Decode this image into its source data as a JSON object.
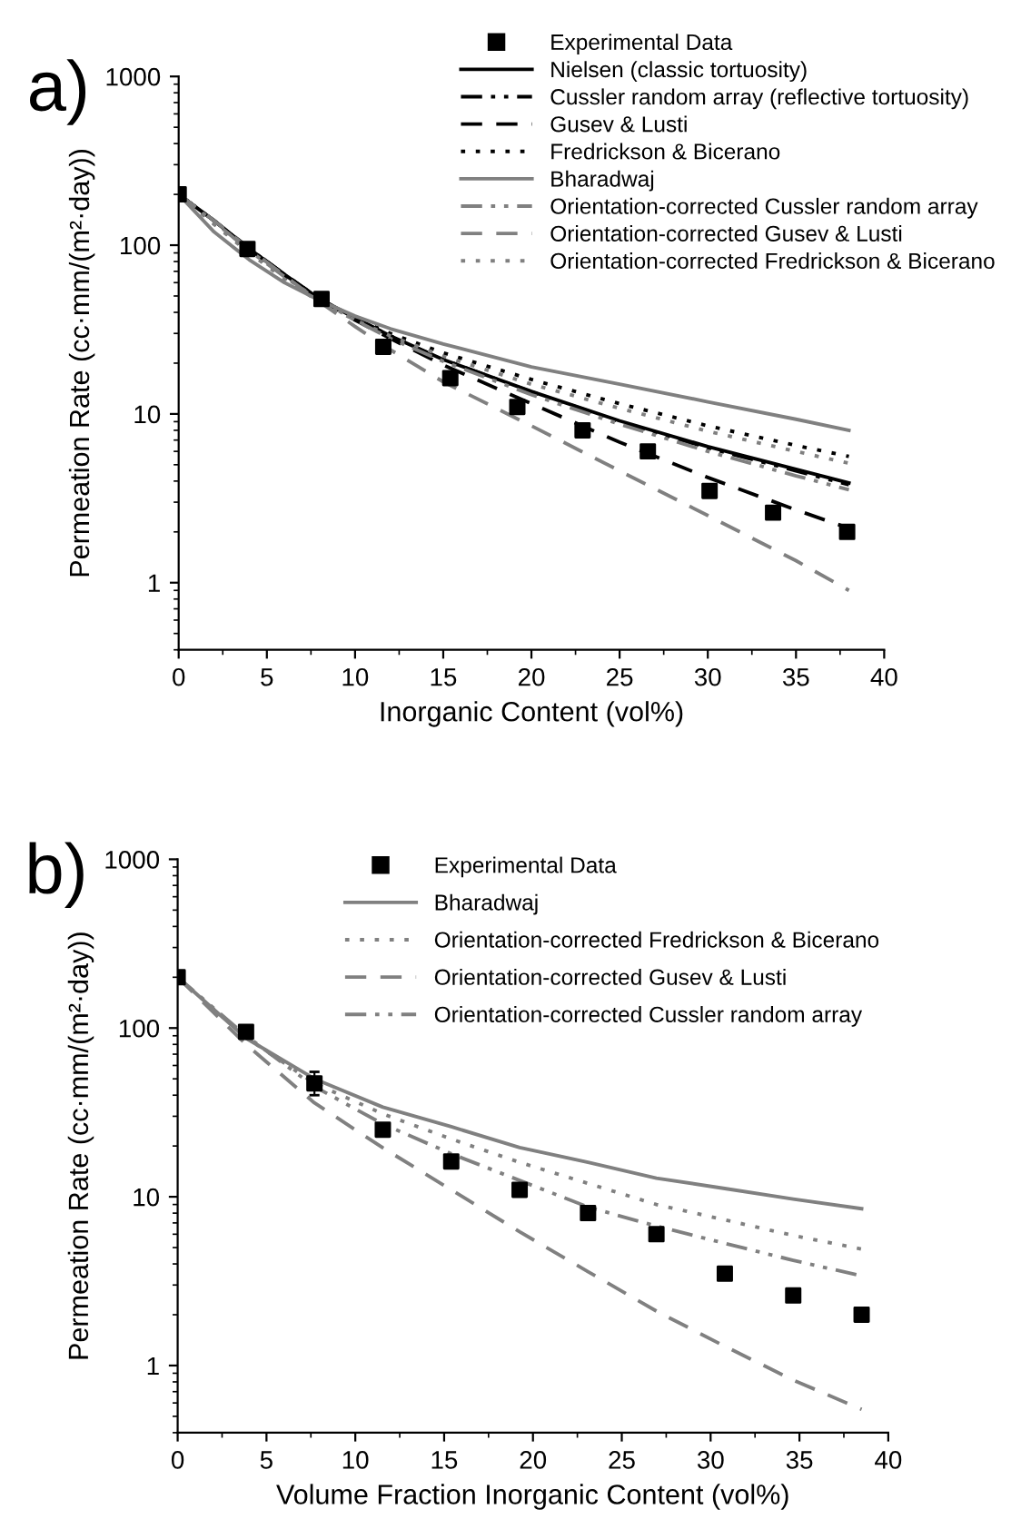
{
  "chart_data": [
    {
      "type": "line",
      "title": "a)",
      "xlabel": "Inorganic Content (vol%)",
      "ylabel": "Permeation Rate (cc·mm/(m²·day))",
      "log": "y",
      "xlim": [
        0,
        40
      ],
      "ylim": [
        0.4,
        1000
      ],
      "xticks": [
        0,
        5,
        10,
        15,
        20,
        25,
        30,
        35,
        40
      ],
      "yticks": [
        1,
        10,
        100,
        1000
      ],
      "legend": "top right",
      "grid": false,
      "series": [
        {
          "name": "Experimental Data",
          "type": "scatter",
          "marker": "square",
          "color": "#000000",
          "x": [
            0,
            3.9,
            8.1,
            11.6,
            15.4,
            19.2,
            22.9,
            26.6,
            30.1,
            33.7,
            37.9
          ],
          "values": [
            200,
            95,
            48,
            25,
            16.3,
            11,
            8,
            6,
            3.5,
            2.6,
            2.0
          ]
        },
        {
          "name": "Nielsen (classic tortuosity)",
          "line_style": "solid",
          "color": "#000000",
          "x": [
            0,
            2,
            4,
            6,
            8,
            10,
            12,
            15,
            20,
            25,
            30,
            35,
            38
          ],
          "values": [
            200,
            140,
            95,
            67,
            48,
            37,
            29,
            21,
            13.6,
            9.1,
            6.4,
            4.7,
            3.9
          ]
        },
        {
          "name": "Cussler random array (reflective tortuosity)",
          "line_style": "dashdotdot",
          "color": "#000000",
          "x": [
            0,
            2,
            4,
            6,
            8,
            10,
            12,
            15,
            20,
            25,
            30,
            35,
            38
          ],
          "values": [
            200,
            140,
            95,
            67,
            48,
            37,
            29,
            21,
            13.5,
            9,
            6.3,
            4.6,
            3.8
          ]
        },
        {
          "name": "Gusev & Lusti",
          "line_style": "dashed",
          "color": "#000000",
          "x": [
            0,
            2,
            4,
            6,
            8,
            10,
            12,
            15,
            20,
            25,
            30,
            35,
            38
          ],
          "values": [
            200,
            140,
            96,
            67,
            48,
            36,
            28,
            19.5,
            11.5,
            6.8,
            4.2,
            2.7,
            2.1
          ]
        },
        {
          "name": "Fredrickson & Bicerano",
          "line_style": "dotted",
          "color": "#000000",
          "x": [
            0,
            2,
            4,
            6,
            8,
            10,
            12,
            15,
            20,
            25,
            30,
            35,
            38
          ],
          "values": [
            200,
            135,
            92,
            65,
            47,
            37,
            30,
            23,
            16,
            11.5,
            8.5,
            6.5,
            5.6
          ]
        },
        {
          "name": "Bharadwaj",
          "line_style": "solid",
          "color": "#808080",
          "x": [
            0,
            2,
            4,
            6,
            8,
            10,
            12,
            15,
            20,
            25,
            30,
            35,
            38
          ],
          "values": [
            200,
            120,
            82,
            60,
            47,
            38,
            32,
            26,
            19,
            15,
            11.8,
            9.3,
            8.0
          ]
        },
        {
          "name": "Orientation-corrected Cussler random array",
          "line_style": "dashdotdot",
          "color": "#808080",
          "x": [
            0,
            2,
            4,
            6,
            8,
            10,
            12,
            15,
            20,
            25,
            30,
            35,
            38
          ],
          "values": [
            200,
            138,
            93,
            65,
            47,
            36,
            28,
            20.5,
            13,
            8.7,
            6,
            4.3,
            3.55
          ]
        },
        {
          "name": "Orientation-corrected Gusev & Lusti",
          "line_style": "dashed",
          "color": "#808080",
          "x": [
            0,
            2,
            4,
            6,
            8,
            10,
            12,
            15,
            20,
            25,
            30,
            35,
            38
          ],
          "values": [
            200,
            140,
            95,
            66,
            46,
            33,
            24,
            15.5,
            8.5,
            4.6,
            2.5,
            1.35,
            0.9
          ]
        },
        {
          "name": "Orientation-corrected Fredrickson & Bicerano",
          "line_style": "dotted",
          "color": "#808080",
          "x": [
            0,
            2,
            4,
            6,
            8,
            10,
            12,
            15,
            20,
            25,
            30,
            35,
            38
          ],
          "values": [
            200,
            133,
            90,
            63,
            46,
            36,
            29,
            22,
            15,
            10.8,
            7.9,
            6,
            5.1
          ]
        }
      ]
    },
    {
      "type": "line",
      "title": "b)",
      "xlabel": "Volume Fraction Inorganic Content (vol%)",
      "ylabel": "Permeation Rate (cc·mm/(m²·day))",
      "log": "y",
      "xlim": [
        0,
        40
      ],
      "ylim": [
        0.4,
        1000
      ],
      "xticks": [
        0,
        5,
        10,
        15,
        20,
        25,
        30,
        35,
        40
      ],
      "yticks": [
        1,
        10,
        100,
        1000
      ],
      "legend": "top right",
      "grid": false,
      "series": [
        {
          "name": "Experimental Data",
          "type": "scatter",
          "marker": "square",
          "color": "#000000",
          "x": [
            0,
            3.85,
            7.7,
            11.55,
            15.4,
            19.25,
            23.1,
            26.95,
            30.8,
            34.65,
            38.5
          ],
          "values": [
            200,
            95,
            47,
            25,
            16.2,
            11,
            8,
            6,
            3.5,
            2.6,
            2.0
          ],
          "errors": [
            null,
            null,
            [
              40,
              55
            ],
            null,
            null,
            null,
            null,
            null,
            null,
            null,
            null
          ]
        },
        {
          "name": "Bharadwaj",
          "line_style": "solid",
          "color": "#808080",
          "x": [
            0,
            3.85,
            7.7,
            11.55,
            15.4,
            19.25,
            23.1,
            26.95,
            30.8,
            34.65,
            38.5
          ],
          "values": [
            200,
            87,
            50,
            34,
            26,
            19.6,
            16,
            12.9,
            11.2,
            9.7,
            8.5
          ]
        },
        {
          "name": "Orientation-corrected Fredrickson & Bicerano",
          "line_style": "dotted",
          "color": "#808080",
          "x": [
            0,
            3.85,
            7.7,
            11.55,
            15.4,
            19.25,
            23.1,
            26.95,
            30.8,
            34.65,
            38.5
          ],
          "values": [
            200,
            88,
            47,
            31,
            22,
            16,
            12,
            9,
            7.3,
            5.9,
            4.9
          ]
        },
        {
          "name": "Orientation-corrected Gusev & Lusti",
          "line_style": "dashed",
          "color": "#808080",
          "x": [
            0,
            3.85,
            7.7,
            11.55,
            15.4,
            19.25,
            23.1,
            26.95,
            30.8,
            34.65,
            38.5
          ],
          "values": [
            200,
            80,
            36,
            19.5,
            11,
            6.2,
            3.6,
            2.1,
            1.3,
            0.82,
            0.55
          ]
        },
        {
          "name": "Orientation-corrected Cussler random array",
          "line_style": "dashdotdot",
          "color": "#808080",
          "x": [
            0,
            3.85,
            7.7,
            11.55,
            15.4,
            19.25,
            23.1,
            26.95,
            30.8,
            34.65,
            38.5
          ],
          "values": [
            200,
            90,
            45,
            27,
            18,
            12.5,
            8.7,
            6.7,
            5.3,
            4.2,
            3.4
          ]
        }
      ]
    }
  ]
}
